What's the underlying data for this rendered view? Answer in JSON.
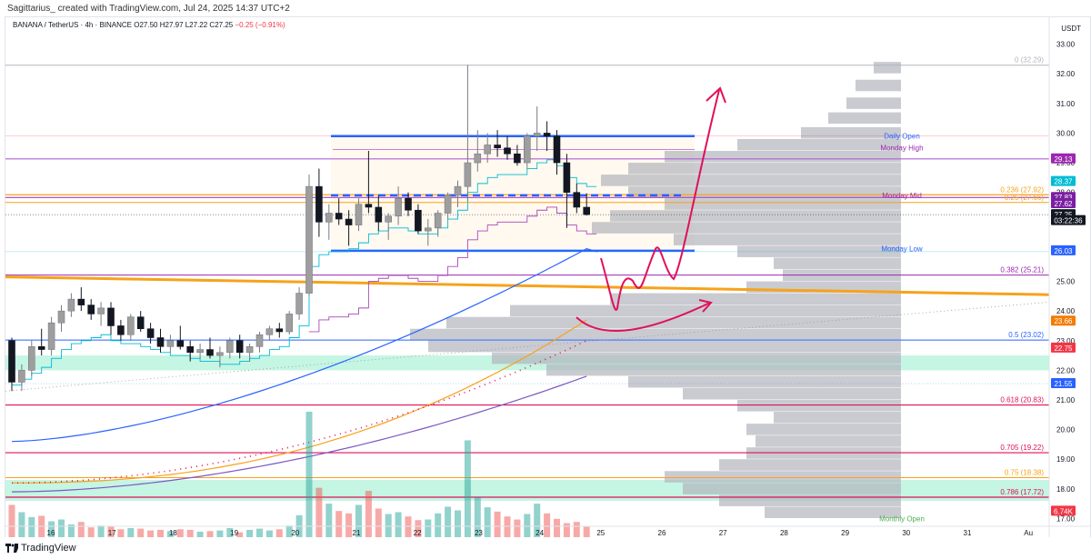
{
  "header": {
    "caption": "Sagittarius_ created with TradingView.com, Jul 24, 2025 14:37 UTC+2",
    "symbol": "BANANA / TetherUS · 4h · BINANCE",
    "ohlc": "O27.50 H27.97 L27.22 C27.25",
    "change": "−0.25 (−0.91%)",
    "currency": "USDT"
  },
  "footer": {
    "logo_text": "TradingView"
  },
  "colors": {
    "up": "#ffffff",
    "down": "#131722",
    "blue": "#2962ff",
    "orange": "#f7a21b",
    "purple": "#b15fd6",
    "pink": "#e0105a",
    "zone": "#7ee8c1",
    "vol": "#c8c8c8"
  },
  "chart_data": {
    "type": "candlestick",
    "y_axis_ticks": [
      "33.00",
      "32.00",
      "31.00",
      "30.00",
      "29.00",
      "28.00",
      "27.00",
      "26.00",
      "25.00",
      "24.00",
      "23.00",
      "22.00",
      "21.00",
      "20.00",
      "19.00",
      "18.00",
      "17.00"
    ],
    "x_axis_ticks": [
      "16",
      "17",
      "18",
      "19",
      "20",
      "21",
      "22",
      "23",
      "24",
      "25",
      "26",
      "27",
      "28",
      "29",
      "30",
      "31",
      "Au"
    ],
    "ylim": [
      16.8,
      33.6
    ],
    "price_badges": [
      {
        "label": "29.13",
        "value": 29.13,
        "color": "#9c27b0"
      },
      {
        "label": "28.37",
        "value": 28.37,
        "color": "#00bcd4"
      },
      {
        "label": "27.83",
        "value": 27.83,
        "color": "#7b1fa2"
      },
      {
        "label": "27.62",
        "value": 27.62,
        "color": "#7b1fa2"
      },
      {
        "label": "27.25",
        "value": 27.25,
        "color": "#131722"
      },
      {
        "label": "03:22:36",
        "value": 27.05,
        "color": "#131722"
      },
      {
        "label": "26.03",
        "value": 26.03,
        "color": "#2962ff"
      },
      {
        "label": "23.66",
        "value": 23.66,
        "color": "#f57c00"
      },
      {
        "label": "22.75",
        "value": 22.75,
        "color": "#f23645"
      },
      {
        "label": "21.55",
        "value": 21.55,
        "color": "#2962ff"
      },
      {
        "label": "6.74K",
        "value": 17.25,
        "color": "#f23645"
      }
    ],
    "fib_levels": [
      {
        "label": "0 (32.29)",
        "value": 32.29,
        "color": "#b2b5be"
      },
      {
        "label": "0.236 (27.92)",
        "value": 27.92,
        "color": "#f7a21b"
      },
      {
        "label": "0.25 (27.66)",
        "value": 27.66,
        "color": "#f7a21b"
      },
      {
        "label": "0.382 (25.21)",
        "value": 25.21,
        "color": "#9c27b0"
      },
      {
        "label": "0.5 (23.02)",
        "value": 23.02,
        "color": "#2962ff"
      },
      {
        "label": "0.618 (20.83)",
        "value": 20.83,
        "color": "#e0105a"
      },
      {
        "label": "0.705 (19.22)",
        "value": 19.22,
        "color": "#e0105a"
      },
      {
        "label": "0.75 (18.38)",
        "value": 18.38,
        "color": "#f7a21b"
      },
      {
        "label": "0.786 (17.72)",
        "value": 17.72,
        "color": "#e0105a"
      }
    ],
    "annotations": [
      {
        "label": "Daily Open",
        "value": 29.9,
        "color": "#2962ff"
      },
      {
        "label": "Monday High",
        "value": 29.5,
        "color": "#9c27b0"
      },
      {
        "label": "Monday Mid",
        "value": 27.9,
        "color": "#9c27b0"
      },
      {
        "label": "Monday Low",
        "value": 26.1,
        "color": "#2962ff"
      },
      {
        "label": "Monthly Open",
        "value": 17.0,
        "color": "#4caf50"
      }
    ],
    "candles": [
      {
        "o": 23.0,
        "h": 23.1,
        "l": 21.3,
        "c": 21.6
      },
      {
        "o": 21.6,
        "h": 22.2,
        "l": 21.3,
        "c": 22.0
      },
      {
        "o": 22.0,
        "h": 23.0,
        "l": 21.8,
        "c": 22.8
      },
      {
        "o": 22.8,
        "h": 23.4,
        "l": 22.5,
        "c": 22.7
      },
      {
        "o": 22.7,
        "h": 23.8,
        "l": 22.5,
        "c": 23.6
      },
      {
        "o": 23.6,
        "h": 24.2,
        "l": 23.3,
        "c": 24.0
      },
      {
        "o": 24.0,
        "h": 24.6,
        "l": 23.8,
        "c": 24.4
      },
      {
        "o": 24.4,
        "h": 24.8,
        "l": 24.0,
        "c": 24.2
      },
      {
        "o": 24.2,
        "h": 24.4,
        "l": 23.7,
        "c": 23.9
      },
      {
        "o": 23.9,
        "h": 24.3,
        "l": 23.5,
        "c": 24.1
      },
      {
        "o": 24.1,
        "h": 24.3,
        "l": 23.2,
        "c": 23.5
      },
      {
        "o": 23.5,
        "h": 23.7,
        "l": 23.0,
        "c": 23.2
      },
      {
        "o": 23.2,
        "h": 23.9,
        "l": 23.0,
        "c": 23.8
      },
      {
        "o": 23.8,
        "h": 24.0,
        "l": 23.3,
        "c": 23.4
      },
      {
        "o": 23.4,
        "h": 23.6,
        "l": 22.9,
        "c": 23.1
      },
      {
        "o": 23.1,
        "h": 23.4,
        "l": 22.6,
        "c": 22.8
      },
      {
        "o": 22.8,
        "h": 23.2,
        "l": 22.6,
        "c": 23.0
      },
      {
        "o": 23.0,
        "h": 23.5,
        "l": 22.7,
        "c": 22.8
      },
      {
        "o": 22.8,
        "h": 23.0,
        "l": 22.3,
        "c": 22.6
      },
      {
        "o": 22.6,
        "h": 22.9,
        "l": 22.4,
        "c": 22.7
      },
      {
        "o": 22.7,
        "h": 23.1,
        "l": 22.4,
        "c": 22.5
      },
      {
        "o": 22.5,
        "h": 22.8,
        "l": 22.1,
        "c": 22.6
      },
      {
        "o": 22.6,
        "h": 23.1,
        "l": 22.4,
        "c": 23.0
      },
      {
        "o": 23.0,
        "h": 23.2,
        "l": 22.4,
        "c": 22.6
      },
      {
        "o": 22.6,
        "h": 22.9,
        "l": 22.3,
        "c": 22.8
      },
      {
        "o": 22.8,
        "h": 23.3,
        "l": 22.6,
        "c": 23.2
      },
      {
        "o": 23.2,
        "h": 23.5,
        "l": 23.0,
        "c": 23.4
      },
      {
        "o": 23.4,
        "h": 23.6,
        "l": 23.1,
        "c": 23.3
      },
      {
        "o": 23.3,
        "h": 24.0,
        "l": 23.2,
        "c": 23.9
      },
      {
        "o": 23.9,
        "h": 24.8,
        "l": 23.7,
        "c": 24.6
      },
      {
        "o": 24.6,
        "h": 28.6,
        "l": 24.5,
        "c": 28.2
      },
      {
        "o": 28.2,
        "h": 28.8,
        "l": 26.5,
        "c": 27.0
      },
      {
        "o": 27.0,
        "h": 27.6,
        "l": 26.4,
        "c": 27.3
      },
      {
        "o": 27.3,
        "h": 27.8,
        "l": 26.9,
        "c": 27.1
      },
      {
        "o": 27.1,
        "h": 27.4,
        "l": 26.2,
        "c": 26.9
      },
      {
        "o": 26.9,
        "h": 27.8,
        "l": 26.7,
        "c": 27.6
      },
      {
        "o": 27.6,
        "h": 29.4,
        "l": 27.3,
        "c": 27.5
      },
      {
        "o": 27.5,
        "h": 27.9,
        "l": 26.7,
        "c": 27.0
      },
      {
        "o": 27.0,
        "h": 27.3,
        "l": 26.4,
        "c": 27.2
      },
      {
        "o": 27.2,
        "h": 28.2,
        "l": 26.9,
        "c": 27.8
      },
      {
        "o": 27.8,
        "h": 28.0,
        "l": 27.2,
        "c": 27.4
      },
      {
        "o": 27.4,
        "h": 27.6,
        "l": 26.6,
        "c": 26.7
      },
      {
        "o": 26.7,
        "h": 27.1,
        "l": 26.2,
        "c": 26.8
      },
      {
        "o": 26.8,
        "h": 27.4,
        "l": 26.5,
        "c": 27.3
      },
      {
        "o": 27.3,
        "h": 28.0,
        "l": 27.1,
        "c": 27.9
      },
      {
        "o": 27.9,
        "h": 28.4,
        "l": 27.5,
        "c": 28.2
      },
      {
        "o": 28.2,
        "h": 32.3,
        "l": 27.7,
        "c": 29.0
      },
      {
        "o": 29.0,
        "h": 30.1,
        "l": 28.7,
        "c": 29.3
      },
      {
        "o": 29.3,
        "h": 30.0,
        "l": 29.0,
        "c": 29.6
      },
      {
        "o": 29.6,
        "h": 30.1,
        "l": 29.2,
        "c": 29.5
      },
      {
        "o": 29.5,
        "h": 29.9,
        "l": 29.1,
        "c": 29.3
      },
      {
        "o": 29.3,
        "h": 29.6,
        "l": 28.9,
        "c": 29.0
      },
      {
        "o": 29.0,
        "h": 30.0,
        "l": 28.8,
        "c": 29.9
      },
      {
        "o": 29.9,
        "h": 30.9,
        "l": 29.4,
        "c": 30.0
      },
      {
        "o": 30.0,
        "h": 30.4,
        "l": 29.4,
        "c": 29.9
      },
      {
        "o": 29.9,
        "h": 30.1,
        "l": 28.6,
        "c": 29.0
      },
      {
        "o": 29.0,
        "h": 29.3,
        "l": 26.8,
        "c": 28.0
      },
      {
        "o": 28.0,
        "h": 28.3,
        "l": 27.3,
        "c": 27.5
      },
      {
        "o": 27.5,
        "h": 27.97,
        "l": 27.22,
        "c": 27.25
      }
    ],
    "volumes": [
      6.2,
      5.0,
      4.2,
      4.4,
      3.5,
      3.8,
      3.0,
      3.4,
      2.5,
      2.8,
      2.7,
      2.2,
      2.4,
      2.3,
      2.0,
      2.1,
      1.9,
      2.2,
      2.1,
      1.8,
      1.9,
      2.0,
      2.4,
      1.7,
      2.1,
      2.3,
      2.0,
      2.2,
      2.8,
      4.5,
      21.5,
      9.0,
      6.4,
      5.2,
      4.8,
      6.2,
      8.5,
      5.6,
      4.7,
      5.0,
      4.3,
      3.7,
      3.8,
      4.8,
      5.9,
      5.3,
      16.8,
      7.4,
      5.8,
      5.1,
      4.3,
      3.8,
      4.7,
      6.4,
      4.8,
      3.9,
      3.2,
      3.4,
      2.6
    ]
  }
}
